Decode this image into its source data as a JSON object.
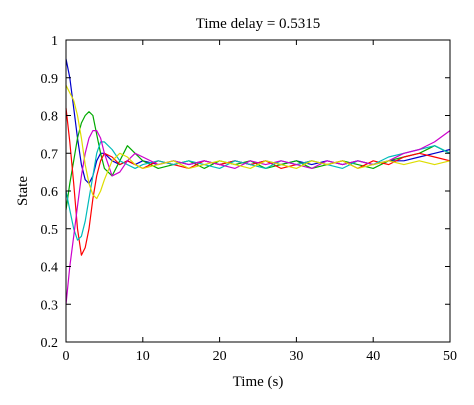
{
  "chart_data": {
    "type": "line",
    "title": "Time delay = 0.5315",
    "xlabel": "Time (s)",
    "ylabel": "State",
    "xlim": [
      0,
      50
    ],
    "ylim": [
      0.2,
      1
    ],
    "xticks": [
      0,
      10,
      20,
      30,
      40,
      50
    ],
    "yticks": [
      0.2,
      0.3,
      0.4,
      0.5,
      0.6,
      0.7,
      0.8,
      0.9,
      1
    ],
    "xtick_labels": [
      "0",
      "10",
      "20",
      "30",
      "40",
      "50"
    ],
    "ytick_labels": [
      "0.2",
      "0.3",
      "0.4",
      "0.5",
      "0.6",
      "0.7",
      "0.8",
      "0.9",
      "1"
    ],
    "grid": false,
    "x": [
      0,
      0.5,
      1,
      1.5,
      2,
      2.5,
      3,
      3.5,
      4,
      4.5,
      5,
      6,
      7,
      8,
      9,
      10,
      12,
      14,
      16,
      18,
      20,
      22,
      24,
      26,
      28,
      30,
      32,
      34,
      36,
      38,
      40,
      42,
      44,
      46,
      48,
      50
    ],
    "series": [
      {
        "color": "#0000cc",
        "values": [
          0.95,
          0.9,
          0.82,
          0.74,
          0.67,
          0.63,
          0.62,
          0.64,
          0.68,
          0.7,
          0.7,
          0.68,
          0.67,
          0.68,
          0.67,
          0.68,
          0.67,
          0.68,
          0.67,
          0.68,
          0.67,
          0.68,
          0.67,
          0.68,
          0.67,
          0.68,
          0.67,
          0.68,
          0.67,
          0.68,
          0.67,
          0.68,
          0.68,
          0.69,
          0.7,
          0.71
        ]
      },
      {
        "color": "#00aa00",
        "values": [
          0.55,
          0.62,
          0.68,
          0.74,
          0.78,
          0.8,
          0.81,
          0.8,
          0.75,
          0.7,
          0.66,
          0.64,
          0.68,
          0.72,
          0.7,
          0.68,
          0.66,
          0.67,
          0.68,
          0.66,
          0.68,
          0.67,
          0.68,
          0.66,
          0.67,
          0.68,
          0.66,
          0.67,
          0.68,
          0.67,
          0.66,
          0.68,
          0.69,
          0.7,
          0.72,
          0.7
        ]
      },
      {
        "color": "#ff0000",
        "values": [
          0.82,
          0.73,
          0.62,
          0.5,
          0.43,
          0.45,
          0.5,
          0.58,
          0.64,
          0.68,
          0.7,
          0.69,
          0.67,
          0.68,
          0.67,
          0.66,
          0.68,
          0.67,
          0.66,
          0.68,
          0.67,
          0.68,
          0.67,
          0.68,
          0.66,
          0.67,
          0.68,
          0.67,
          0.68,
          0.66,
          0.68,
          0.67,
          0.69,
          0.7,
          0.69,
          0.68
        ]
      },
      {
        "color": "#00bbbb",
        "values": [
          0.6,
          0.55,
          0.5,
          0.47,
          0.48,
          0.52,
          0.58,
          0.64,
          0.7,
          0.73,
          0.73,
          0.71,
          0.68,
          0.67,
          0.66,
          0.67,
          0.68,
          0.67,
          0.68,
          0.67,
          0.66,
          0.68,
          0.67,
          0.66,
          0.68,
          0.67,
          0.68,
          0.67,
          0.66,
          0.68,
          0.67,
          0.69,
          0.7,
          0.71,
          0.72,
          0.7
        ]
      },
      {
        "color": "#cc00cc",
        "values": [
          0.3,
          0.4,
          0.48,
          0.56,
          0.64,
          0.7,
          0.74,
          0.76,
          0.76,
          0.74,
          0.7,
          0.64,
          0.65,
          0.68,
          0.7,
          0.69,
          0.67,
          0.68,
          0.67,
          0.68,
          0.67,
          0.66,
          0.68,
          0.67,
          0.68,
          0.67,
          0.66,
          0.68,
          0.67,
          0.68,
          0.67,
          0.68,
          0.7,
          0.71,
          0.73,
          0.76
        ]
      },
      {
        "color": "#dddd00",
        "values": [
          0.88,
          0.86,
          0.84,
          0.8,
          0.74,
          0.67,
          0.62,
          0.59,
          0.58,
          0.6,
          0.63,
          0.68,
          0.7,
          0.69,
          0.67,
          0.66,
          0.67,
          0.68,
          0.66,
          0.67,
          0.68,
          0.67,
          0.66,
          0.68,
          0.67,
          0.66,
          0.68,
          0.67,
          0.68,
          0.66,
          0.67,
          0.68,
          0.67,
          0.68,
          0.67,
          0.68
        ]
      }
    ]
  }
}
